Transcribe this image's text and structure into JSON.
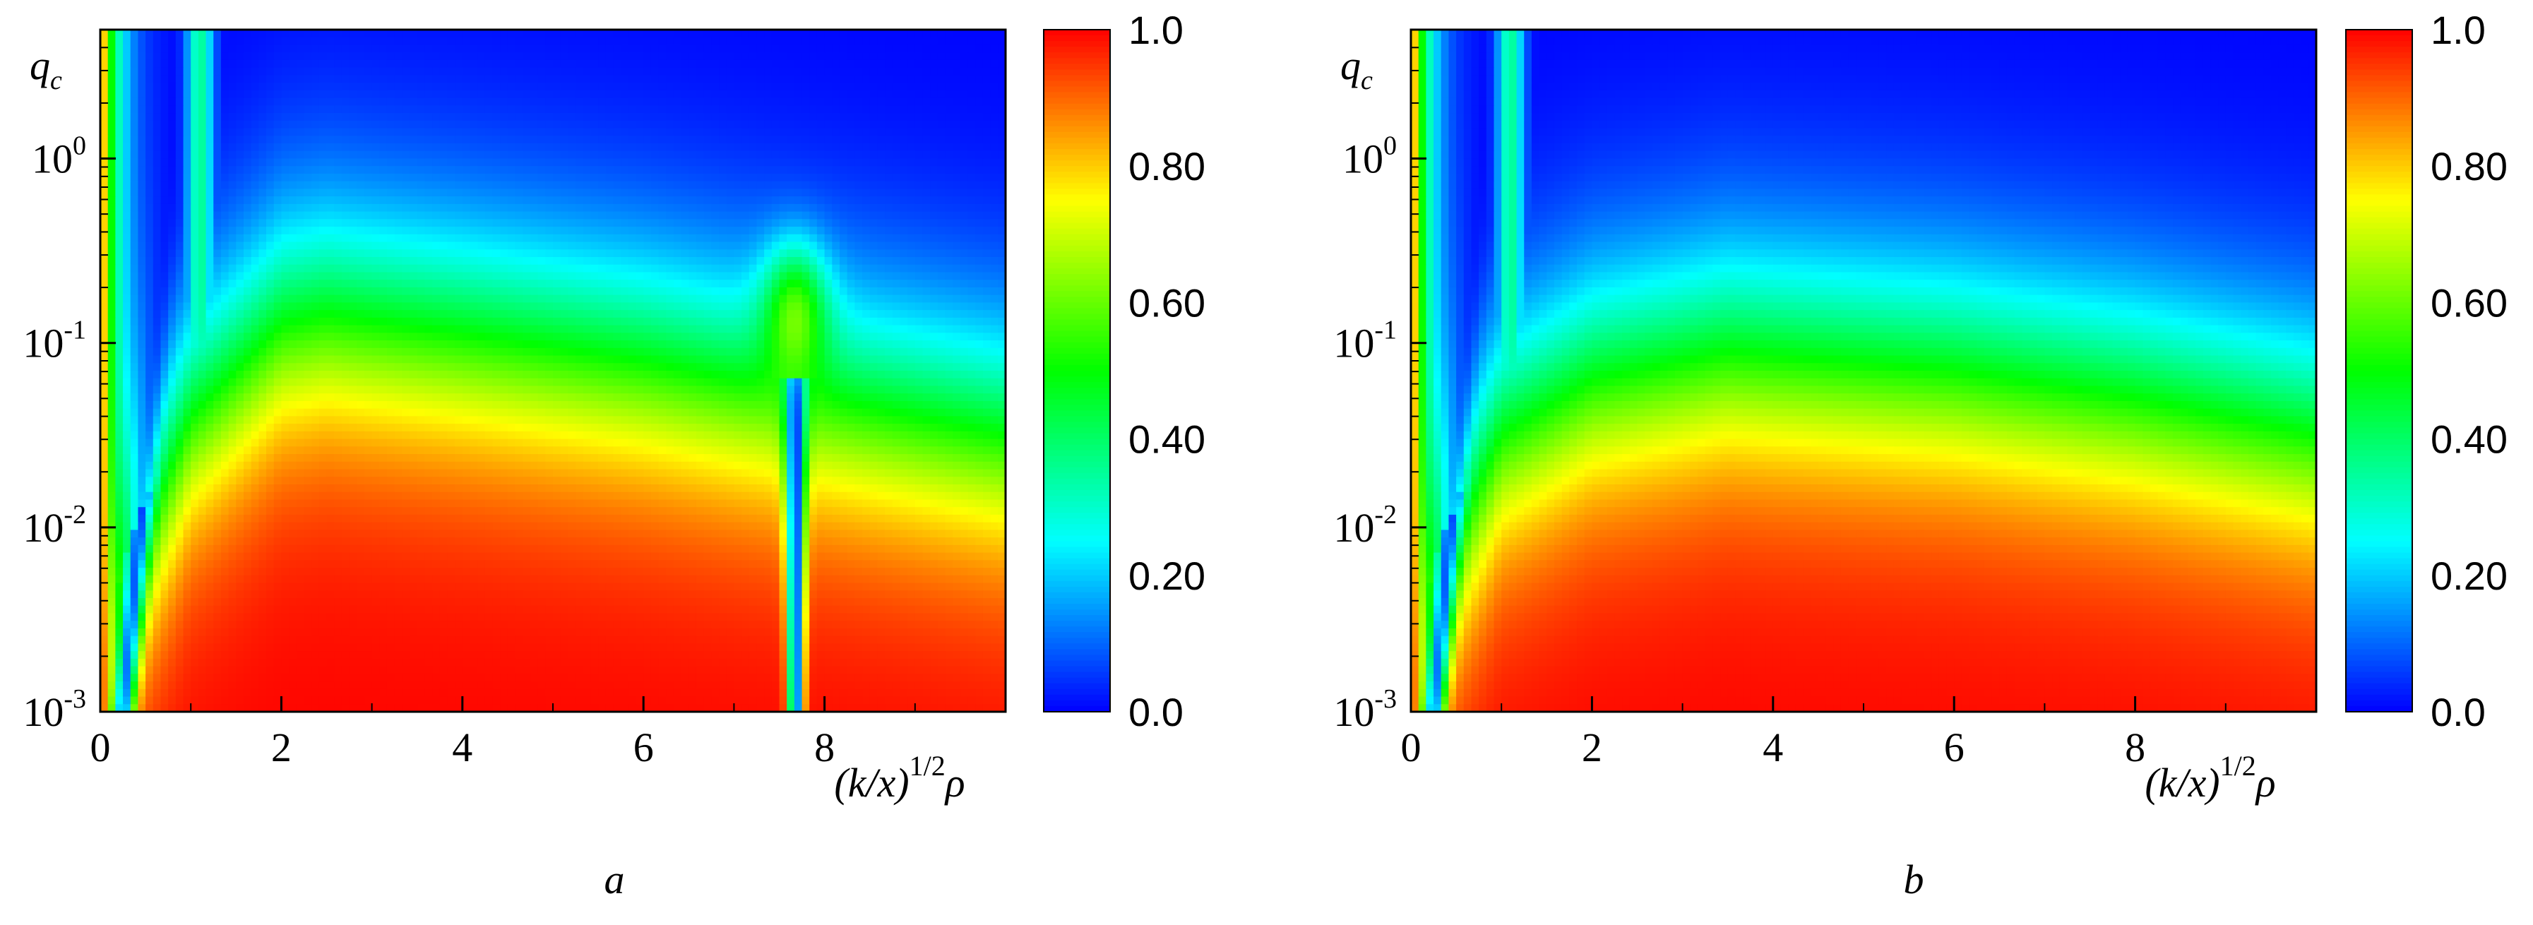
{
  "chart_data": [
    {
      "id": "a",
      "type": "heatmap",
      "panel_label": "a",
      "ylabel": "q",
      "ylabel_sub": "c",
      "xlabel": "(k/x)",
      "xlabel_sup": "1/2",
      "xlabel_tail": "ρ",
      "x_ticks": [
        0,
        2,
        4,
        6,
        8
      ],
      "x_tick_labels": [
        "0",
        "2",
        "4",
        "6",
        "8"
      ],
      "xlim": [
        0,
        10
      ],
      "y_scale": "log",
      "ylim": [
        0.001,
        5
      ],
      "y_ticks": [
        0.001,
        0.01,
        0.1,
        1
      ],
      "y_tick_labels": [
        {
          "base": "10",
          "exp": "-3"
        },
        {
          "base": "10",
          "exp": "-2"
        },
        {
          "base": "10",
          "exp": "-1"
        },
        {
          "base": "10",
          "exp": "0"
        }
      ],
      "colorbar": {
        "min": 0.0,
        "max": 1.0,
        "ticks": [
          "1.0",
          "0.80",
          "0.60",
          "0.40",
          "0.20",
          "0.0"
        ]
      },
      "colormap": [
        "#0000ff",
        "#00ffff",
        "#00ff00",
        "#ffff00",
        "#ff0000"
      ],
      "features": {
        "boundary_level_log10": {
          "anchors_x": [
            0,
            0.3,
            1,
            2,
            2.5,
            4,
            6,
            8,
            10
          ],
          "anchors_y": [
            -3,
            -2.3,
            -1.4,
            -0.9,
            -0.85,
            -0.95,
            -1.1,
            -1.3,
            -1.5
          ]
        },
        "dip_x": 7.68,
        "dip_depth": true
      }
    },
    {
      "id": "b",
      "type": "heatmap",
      "panel_label": "b",
      "ylabel": "q",
      "ylabel_sub": "c",
      "xlabel": "(k/x)",
      "xlabel_sup": "1/2",
      "xlabel_tail": "ρ",
      "x_ticks": [
        0,
        2,
        4,
        6,
        8
      ],
      "x_tick_labels": [
        "0",
        "2",
        "4",
        "6",
        "8"
      ],
      "xlim": [
        0,
        10
      ],
      "y_scale": "log",
      "ylim": [
        0.001,
        5
      ],
      "y_ticks": [
        0.001,
        0.01,
        0.1,
        1
      ],
      "y_tick_labels": [
        {
          "base": "10",
          "exp": "-3"
        },
        {
          "base": "10",
          "exp": "-2"
        },
        {
          "base": "10",
          "exp": "-1"
        },
        {
          "base": "10",
          "exp": "0"
        }
      ],
      "colorbar": {
        "min": 0.0,
        "max": 1.0,
        "ticks": [
          "1.0",
          "0.80",
          "0.60",
          "0.40",
          "0.20",
          "0.0"
        ]
      },
      "colormap": [
        "#0000ff",
        "#00ffff",
        "#00ff00",
        "#ffff00",
        "#ff0000"
      ],
      "features": {
        "boundary_level_log10": {
          "anchors_x": [
            0,
            0.3,
            1,
            2,
            3.5,
            6,
            8,
            10
          ],
          "anchors_y": [
            -3,
            -2.3,
            -1.5,
            -1.2,
            -1.05,
            -1.15,
            -1.3,
            -1.5
          ]
        },
        "dip_x": null,
        "dip_depth": false
      }
    }
  ]
}
